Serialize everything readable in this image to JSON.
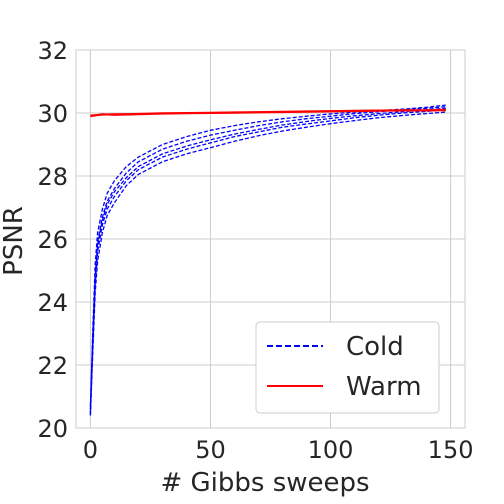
{
  "chart_data": {
    "type": "line",
    "title": "",
    "xlabel": "# Gibbs sweeps",
    "ylabel": "PSNR",
    "xlim": [
      -6,
      156
    ],
    "ylim": [
      20,
      32
    ],
    "xticks": [
      0,
      50,
      100,
      150
    ],
    "yticks": [
      20,
      22,
      24,
      26,
      28,
      30,
      32
    ],
    "grid": true,
    "legend": "bottom-right",
    "series": [
      {
        "name": "Cold",
        "group": "cold",
        "style": "dashed",
        "color": "#0000ff",
        "x": [
          0,
          1,
          2,
          3,
          5,
          7,
          10,
          15,
          20,
          30,
          40,
          50,
          60,
          70,
          80,
          90,
          100,
          110,
          120,
          130,
          140,
          148
        ],
        "y": [
          20.4,
          22.8,
          24.9,
          25.9,
          26.7,
          27.2,
          27.6,
          28.1,
          28.45,
          28.85,
          29.1,
          29.3,
          29.45,
          29.6,
          29.72,
          29.82,
          29.9,
          29.98,
          30.04,
          30.1,
          30.15,
          30.2
        ]
      },
      {
        "name": "",
        "group": "cold",
        "style": "dashed",
        "color": "#0000ff",
        "x": [
          0,
          1,
          2,
          3,
          5,
          7,
          10,
          15,
          20,
          30,
          40,
          50,
          60,
          70,
          80,
          90,
          100,
          110,
          120,
          130,
          140,
          148
        ],
        "y": [
          20.6,
          23.1,
          25.2,
          26.2,
          26.95,
          27.45,
          27.85,
          28.3,
          28.6,
          29.0,
          29.25,
          29.45,
          29.6,
          29.72,
          29.82,
          29.9,
          29.97,
          30.03,
          30.08,
          30.12,
          30.18,
          30.25
        ]
      },
      {
        "name": "",
        "group": "cold",
        "style": "dashed",
        "color": "#0000ff",
        "x": [
          0,
          1,
          2,
          3,
          5,
          7,
          10,
          15,
          20,
          30,
          40,
          50,
          60,
          70,
          80,
          90,
          100,
          110,
          120,
          130,
          140,
          148
        ],
        "y": [
          20.5,
          22.6,
          24.6,
          25.6,
          26.45,
          26.95,
          27.35,
          27.85,
          28.2,
          28.6,
          28.85,
          29.05,
          29.25,
          29.4,
          29.55,
          29.65,
          29.75,
          29.85,
          29.93,
          30.0,
          30.05,
          30.1
        ]
      },
      {
        "name": "",
        "group": "cold",
        "style": "dashed",
        "color": "#0000ff",
        "x": [
          0,
          1,
          2,
          3,
          5,
          7,
          10,
          15,
          20,
          30,
          40,
          50,
          60,
          70,
          80,
          90,
          100,
          110,
          120,
          130,
          140,
          148
        ],
        "y": [
          20.7,
          22.9,
          24.8,
          25.8,
          26.6,
          27.1,
          27.5,
          27.95,
          28.3,
          28.7,
          28.95,
          29.15,
          29.33,
          29.48,
          29.62,
          29.73,
          29.83,
          29.91,
          29.98,
          30.04,
          30.1,
          30.15
        ]
      },
      {
        "name": "",
        "group": "cold",
        "style": "dashed",
        "color": "#0000ff",
        "x": [
          0,
          1,
          2,
          3,
          5,
          7,
          10,
          15,
          20,
          30,
          40,
          50,
          60,
          70,
          80,
          90,
          100,
          110,
          120,
          130,
          140,
          148
        ],
        "y": [
          20.4,
          22.4,
          24.3,
          25.3,
          26.2,
          26.75,
          27.15,
          27.7,
          28.05,
          28.45,
          28.7,
          28.9,
          29.1,
          29.28,
          29.43,
          29.55,
          29.66,
          29.76,
          29.85,
          29.92,
          29.98,
          30.03
        ]
      },
      {
        "name": "Warm",
        "group": "warm",
        "style": "solid",
        "color": "#ff0000",
        "x": [
          0,
          5,
          10,
          20,
          30,
          40,
          50,
          60,
          70,
          80,
          90,
          100,
          110,
          120,
          130,
          140,
          148
        ],
        "y": [
          29.92,
          29.95,
          29.96,
          29.97,
          29.99,
          30.0,
          30.01,
          30.02,
          30.03,
          30.04,
          30.05,
          30.06,
          30.07,
          30.08,
          30.09,
          30.09,
          30.1
        ]
      },
      {
        "name": "",
        "group": "warm",
        "style": "solid",
        "color": "#ff0000",
        "x": [
          0,
          5,
          10,
          20,
          30,
          40,
          50,
          60,
          70,
          80,
          90,
          100,
          110,
          120,
          130,
          140,
          148
        ],
        "y": [
          29.9,
          29.96,
          29.94,
          29.96,
          29.98,
          29.99,
          30.0,
          30.01,
          30.02,
          30.03,
          30.04,
          30.05,
          30.06,
          30.07,
          30.08,
          30.08,
          30.09
        ]
      }
    ]
  }
}
